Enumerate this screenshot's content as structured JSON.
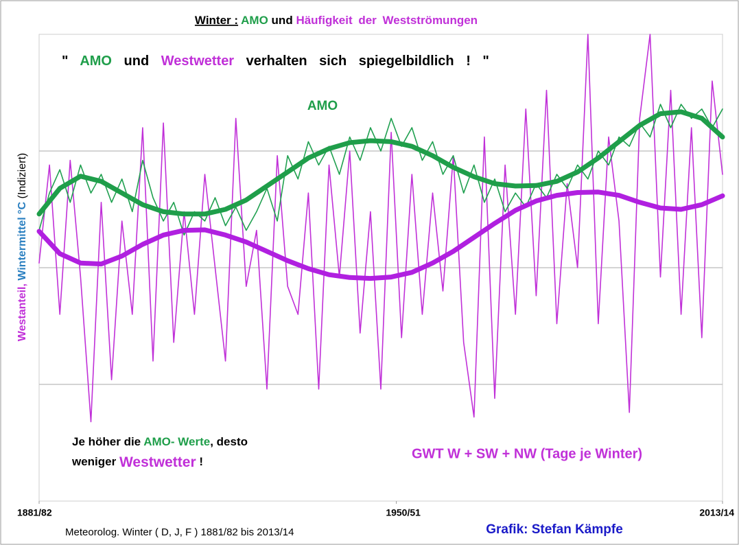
{
  "chart_data": {
    "type": "line",
    "title": [
      "Winter :",
      "AMO",
      "und",
      "Häufigkeit der Westströmungen"
    ],
    "quote": [
      "\"",
      "AMO",
      "und",
      "Westwetter",
      "verhalten sich spiegelbildlich ! \""
    ],
    "amo_label": "AMO",
    "note": [
      "Je höher die",
      "AMO- Werte",
      ", desto",
      "weniger",
      "Westwetter",
      "!"
    ],
    "gwt_label": "GWT W + SW + NW (Tage je Winter)",
    "ylabel": [
      "Westanteil,",
      "Wintermittel °C",
      "(Indiziert)"
    ],
    "footer": "Meteorolog.  Winter ( D, J, F ) 1881/82 bis 2013/14",
    "credit": "Grafik: Stefan Kämpfe",
    "xlim": [
      1881,
      2013
    ],
    "xticks": [
      {
        "value": 1881,
        "label": "1881/82"
      },
      {
        "value": 1950,
        "label": "1950/51"
      },
      {
        "value": 2013,
        "label": "2013/14"
      }
    ],
    "ylim": [
      0,
      100
    ],
    "gridlines": [
      25,
      50,
      75
    ],
    "series": [
      {
        "color": "#c030d8",
        "width": 1.6,
        "x": [
          1881,
          1883,
          1885,
          1887,
          1889,
          1891,
          1893,
          1895,
          1897,
          1899,
          1901,
          1903,
          1905,
          1907,
          1909,
          1911,
          1913,
          1915,
          1917,
          1919,
          1921,
          1923,
          1925,
          1927,
          1929,
          1931,
          1933,
          1935,
          1937,
          1939,
          1941,
          1943,
          1945,
          1947,
          1949,
          1951,
          1953,
          1955,
          1957,
          1959,
          1961,
          1963,
          1965,
          1967,
          1969,
          1971,
          1973,
          1975,
          1977,
          1979,
          1981,
          1983,
          1985,
          1987,
          1989,
          1991,
          1993,
          1995,
          1997,
          1999,
          2001,
          2003,
          2005,
          2007,
          2009,
          2011,
          2013
        ],
        "values": [
          51,
          72,
          40,
          73,
          48,
          17,
          64,
          26,
          60,
          40,
          80,
          30,
          81,
          34,
          62,
          40,
          70,
          50,
          30,
          82,
          46,
          58,
          24,
          74,
          46,
          40,
          66,
          24,
          72,
          48,
          75,
          36,
          62,
          24,
          79,
          35,
          70,
          40,
          66,
          45,
          74,
          34,
          18,
          78,
          22,
          72,
          40,
          84,
          44,
          88,
          38,
          68,
          50,
          100,
          38,
          78,
          60,
          19,
          82,
          100,
          48,
          88,
          40,
          80,
          35,
          90,
          70
        ]
      },
      {
        "color": "#20a050",
        "width": 1.6,
        "x": [
          1881,
          1883,
          1885,
          1887,
          1889,
          1891,
          1893,
          1895,
          1897,
          1899,
          1901,
          1903,
          1905,
          1907,
          1909,
          1911,
          1913,
          1915,
          1917,
          1919,
          1921,
          1923,
          1925,
          1927,
          1929,
          1931,
          1933,
          1935,
          1937,
          1939,
          1941,
          1943,
          1945,
          1947,
          1949,
          1951,
          1953,
          1955,
          1957,
          1959,
          1961,
          1963,
          1965,
          1967,
          1969,
          1971,
          1973,
          1975,
          1977,
          1979,
          1981,
          1983,
          1985,
          1987,
          1989,
          1991,
          1993,
          1995,
          1997,
          1999,
          2001,
          2003,
          2005,
          2007,
          2009,
          2011,
          2013
        ],
        "values": [
          58,
          66,
          71,
          64,
          72,
          66,
          70,
          64,
          69,
          62,
          73,
          65,
          60,
          64,
          57,
          62,
          60,
          65,
          59,
          63,
          58,
          62,
          67,
          60,
          74,
          69,
          77,
          72,
          76,
          70,
          78,
          73,
          80,
          75,
          82,
          76,
          80,
          73,
          77,
          70,
          74,
          66,
          72,
          64,
          69,
          62,
          66,
          63,
          68,
          65,
          70,
          67,
          72,
          69,
          75,
          72,
          78,
          76,
          81,
          78,
          85,
          80,
          85,
          82,
          84,
          80,
          84
        ]
      },
      {
        "color": "#1f9e4a",
        "width": 7,
        "x": [
          1881,
          1885,
          1889,
          1893,
          1897,
          1901,
          1905,
          1909,
          1913,
          1917,
          1921,
          1925,
          1929,
          1933,
          1937,
          1941,
          1945,
          1949,
          1953,
          1957,
          1961,
          1965,
          1969,
          1973,
          1977,
          1981,
          1985,
          1989,
          1993,
          1997,
          2001,
          2005,
          2009,
          2013
        ],
        "values": [
          61.5,
          67,
          69.6,
          68.5,
          66,
          63.5,
          62,
          61.5,
          61.5,
          62.5,
          64.5,
          67.5,
          70.5,
          73.5,
          75.5,
          76.8,
          77.2,
          77,
          76,
          74,
          71.5,
          69.5,
          68,
          67.5,
          67.6,
          68.5,
          70.5,
          73.5,
          77,
          80.5,
          83,
          83.4,
          82,
          78
        ]
      },
      {
        "color": "#b020e0",
        "width": 7,
        "x": [
          1881,
          1885,
          1889,
          1893,
          1897,
          1901,
          1905,
          1909,
          1913,
          1917,
          1921,
          1925,
          1929,
          1933,
          1937,
          1941,
          1945,
          1949,
          1953,
          1957,
          1961,
          1965,
          1969,
          1973,
          1977,
          1981,
          1985,
          1989,
          1993,
          1997,
          2001,
          2005,
          2009,
          2013
        ],
        "values": [
          57.8,
          53,
          51,
          50.8,
          52.5,
          55,
          57,
          58,
          58.1,
          57,
          55.5,
          53.5,
          51.5,
          49.8,
          48.5,
          47.9,
          47.7,
          48,
          49,
          51,
          53.5,
          56.5,
          59.5,
          62.3,
          64.3,
          65.5,
          66.1,
          66.2,
          65.5,
          64,
          62.8,
          62.5,
          63.5,
          65.4
        ]
      }
    ]
  }
}
